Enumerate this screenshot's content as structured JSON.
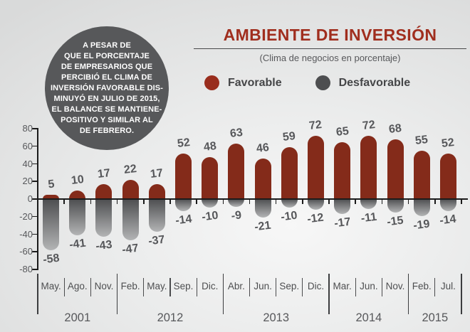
{
  "annotation": {
    "text": "A PESAR DE\nQUE EL PORCENTAJE\nDE EMPRESARIOS QUE\nPERCIBIÓ EL CLIMA DE\nINVERSIÓN FAVORABLE DIS-\nMINUYÓ EN JULIO DE 2015,\nEL BALANCE SE MANTIENE-\nPOSITIVO Y SIMILAR AL\nDE FEBRERO.",
    "background_color": "#57585a",
    "text_color": "#ffffff"
  },
  "header": {
    "title": "AMBIENTE DE INVERSIÓN",
    "subtitle": "(Clima de negocios en porcentaje)",
    "title_color": "#a02e1e"
  },
  "chart_data": {
    "type": "bar",
    "title": "AMBIENTE DE INVERSIÓN",
    "subtitle": "(Clima de negocios en porcentaje)",
    "categories": [
      "May.",
      "Ago.",
      "Nov.",
      "Feb.",
      "May.",
      "Sep.",
      "Dic.",
      "Abr.",
      "Jun.",
      "Sep.",
      "Dic.",
      "Mar.",
      "Jun.",
      "Nov.",
      "Feb.",
      "Jul."
    ],
    "year_groups": [
      {
        "label": "2001",
        "count": 3
      },
      {
        "label": "2012",
        "count": 4
      },
      {
        "label": "2013",
        "count": 4
      },
      {
        "label": "2014",
        "count": 3
      },
      {
        "label": "2015",
        "count": 2
      }
    ],
    "series": [
      {
        "name": "Favorable",
        "color": "#842b1a",
        "values": [
          5,
          10,
          17,
          22,
          17,
          52,
          48,
          63,
          46,
          59,
          72,
          65,
          72,
          68,
          55,
          52
        ]
      },
      {
        "name": "Desfavorable",
        "color": "#4d4e50",
        "fade_color": "#b3b4b5",
        "values": [
          -58,
          -41,
          -43,
          -47,
          -37,
          -14,
          -10,
          -9,
          -21,
          -10,
          -12,
          -17,
          -11,
          -15,
          -19,
          -14
        ]
      }
    ],
    "ylim": [
      -80,
      80
    ],
    "yticks": [
      80,
      60,
      40,
      20,
      0,
      -20,
      -40,
      -60,
      -80
    ],
    "grid": false,
    "legend_position": "top-center"
  }
}
